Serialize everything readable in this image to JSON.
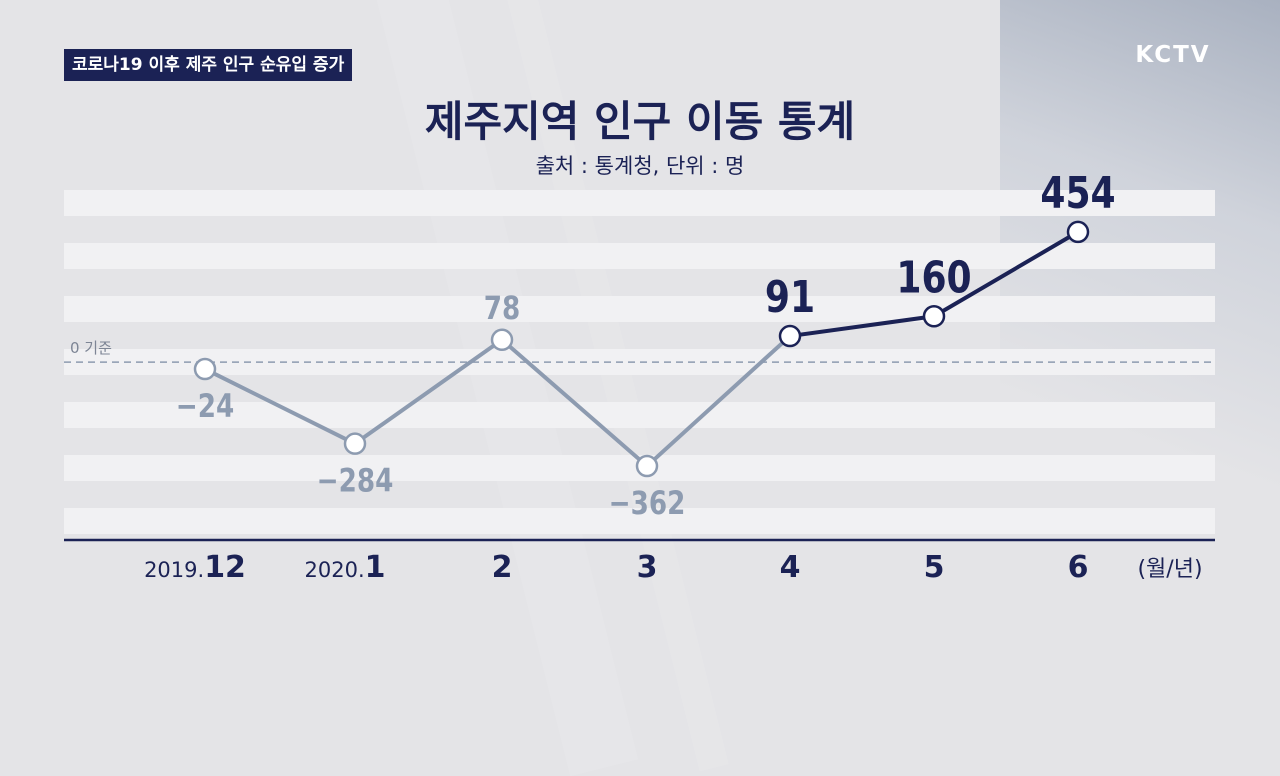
{
  "channel_logo": "KCTV",
  "caption": "코로나19 이후 제주 인구 순유입 증가",
  "title": "제주지역 인구 이동 통계",
  "subtitle": "출처 : 통계청, 단위 : 명",
  "colors": {
    "accent": "#1b2255",
    "muted": "#8d9bb0",
    "background": "#e4e4e7",
    "stripe": "#f1f1f3"
  },
  "chart_data": {
    "type": "line",
    "title": "제주지역 인구 이동 통계",
    "baseline_label": "0 기준",
    "unit_label": "(월/년)",
    "categories": [
      {
        "prefix": "2019.",
        "main": "12"
      },
      {
        "prefix": "2020.",
        "main": "1"
      },
      {
        "prefix": "",
        "main": "2"
      },
      {
        "prefix": "",
        "main": "3"
      },
      {
        "prefix": "",
        "main": "4"
      },
      {
        "prefix": "",
        "main": "5"
      },
      {
        "prefix": "",
        "main": "6"
      }
    ],
    "values": [
      -24,
      -284,
      78,
      -362,
      91,
      160,
      454
    ],
    "labels": [
      "−24",
      "−284",
      "78",
      "−362",
      "91",
      "160",
      "454"
    ],
    "highlight_from_index": 4,
    "ylim": [
      -550,
      600
    ],
    "grid": true
  }
}
